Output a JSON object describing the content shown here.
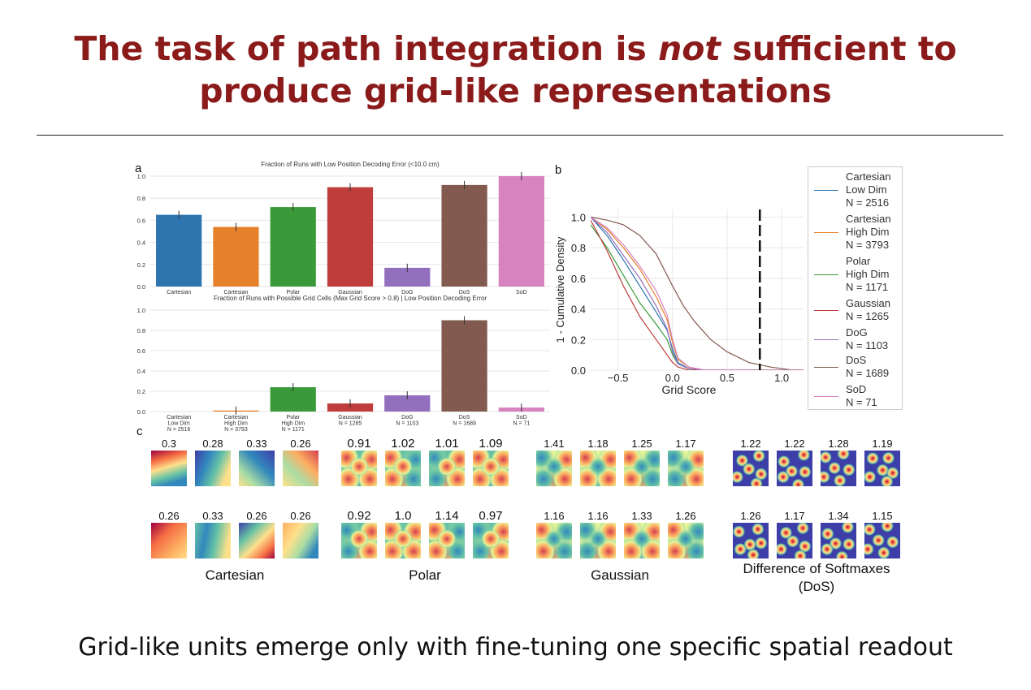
{
  "title": {
    "line1_pre": "The task of path integration is ",
    "line1_em": "not",
    "line1_post": " sufficient to",
    "line2": "produce grid-like representations"
  },
  "footer": "Grid-like units emerge only with fine-tuning one specific spatial readout",
  "panel_labels": {
    "a": "a",
    "b": "b",
    "c": "c"
  },
  "colors": {
    "cartesian_low": "#2e75b0",
    "cartesian_high": "#e6802a",
    "polar": "#3a9a3a",
    "gaussian": "#c03d3d",
    "dog": "#9370bd",
    "dos": "#825a50",
    "sod": "#d783c0",
    "title": "#8b1a1a"
  },
  "chart_data": [
    {
      "type": "bar",
      "title": "Fraction of Runs with Low Position Decoding Error (<10.0 cm)",
      "categories": [
        "Cartesian",
        "Cartesian",
        "Polar",
        "Gaussian",
        "DoG",
        "DoS",
        "SoD"
      ],
      "values": [
        0.65,
        0.54,
        0.72,
        0.9,
        0.17,
        0.92,
        1.0
      ],
      "ylim": [
        0,
        1.0
      ],
      "yticks": [
        "0.0",
        "0.2",
        "0.4",
        "0.6",
        "0.8",
        "1.0"
      ],
      "grid": true
    },
    {
      "type": "bar",
      "title": "Fraction of Runs with Possible Grid Cells (Max Grid Score > 0.8) | Low Position Decoding Error",
      "categories": [
        [
          "Cartesian",
          "Low Dim",
          "N = 2516"
        ],
        [
          "Cartesian",
          "High Dim",
          "N = 3793"
        ],
        [
          "Polar",
          "High Dim",
          "N = 1171"
        ],
        [
          "Gaussian",
          "N = 1265"
        ],
        [
          "DoG",
          "N = 1103"
        ],
        [
          "DoS",
          "N = 1689"
        ],
        [
          "SoD",
          "N = 71"
        ]
      ],
      "values": [
        0.0,
        0.01,
        0.24,
        0.08,
        0.16,
        0.9,
        0.04
      ],
      "ylim": [
        0,
        1.0
      ],
      "yticks": [
        "0.0",
        "0.2",
        "0.4",
        "0.6",
        "0.8",
        "1.0"
      ],
      "grid": true
    },
    {
      "type": "line",
      "xlabel": "Grid Score",
      "ylabel": "1 - Cumulative Density",
      "xlim": [
        -0.75,
        1.2
      ],
      "ylim": [
        0,
        1.05
      ],
      "xticks": [
        "−0.5",
        "0.0",
        "0.5",
        "1.0"
      ],
      "yticks": [
        "0.0",
        "0.2",
        "0.4",
        "0.6",
        "0.8",
        "1.0"
      ],
      "threshold_x": 0.8,
      "legend_position": "right",
      "series": [
        {
          "name": [
            "Cartesian",
            "Low Dim",
            "N = 2516"
          ],
          "x": [
            -0.75,
            -0.6,
            -0.45,
            -0.3,
            -0.15,
            -0.05,
            0.0,
            0.05,
            0.15,
            0.3,
            0.6,
            1.2
          ],
          "y": [
            1.0,
            0.88,
            0.72,
            0.55,
            0.38,
            0.26,
            0.14,
            0.05,
            0.01,
            0.0,
            0.0,
            0.0
          ]
        },
        {
          "name": [
            "Cartesian",
            "High Dim",
            "N = 3793"
          ],
          "x": [
            -0.75,
            -0.6,
            -0.45,
            -0.3,
            -0.15,
            -0.05,
            0.0,
            0.05,
            0.15,
            0.3,
            0.6,
            1.2
          ],
          "y": [
            1.0,
            0.92,
            0.8,
            0.66,
            0.48,
            0.33,
            0.18,
            0.07,
            0.02,
            0.0,
            0.0,
            0.0
          ]
        },
        {
          "name": [
            "Polar",
            "High Dim",
            "N = 1171"
          ],
          "x": [
            -0.75,
            -0.6,
            -0.45,
            -0.3,
            -0.15,
            -0.05,
            0.0,
            0.05,
            0.15,
            0.3,
            0.6,
            1.2
          ],
          "y": [
            0.95,
            0.8,
            0.62,
            0.44,
            0.3,
            0.2,
            0.1,
            0.04,
            0.01,
            0.0,
            0.0,
            0.0
          ]
        },
        {
          "name": [
            "Gaussian",
            "N = 1265"
          ],
          "x": [
            -0.75,
            -0.6,
            -0.45,
            -0.3,
            -0.15,
            -0.05,
            0.0,
            0.05,
            0.15,
            0.3,
            0.6,
            1.2
          ],
          "y": [
            0.98,
            0.78,
            0.55,
            0.35,
            0.2,
            0.1,
            0.05,
            0.02,
            0.0,
            0.0,
            0.0,
            0.0
          ]
        },
        {
          "name": [
            "DoG",
            "N = 1103"
          ],
          "x": [
            -0.75,
            -0.6,
            -0.45,
            -0.3,
            -0.15,
            -0.05,
            0.0,
            0.05,
            0.15,
            0.3,
            0.6,
            1.2
          ],
          "y": [
            1.0,
            0.9,
            0.75,
            0.6,
            0.42,
            0.27,
            0.12,
            0.04,
            0.01,
            0.0,
            0.0,
            0.0
          ]
        },
        {
          "name": [
            "DoS",
            "N = 1689"
          ],
          "x": [
            -0.75,
            -0.6,
            -0.45,
            -0.3,
            -0.15,
            0.0,
            0.1,
            0.2,
            0.35,
            0.5,
            0.7,
            0.9,
            1.1,
            1.2
          ],
          "y": [
            1.0,
            0.98,
            0.95,
            0.88,
            0.76,
            0.55,
            0.42,
            0.32,
            0.2,
            0.12,
            0.05,
            0.02,
            0.0,
            0.0
          ]
        },
        {
          "name": [
            "SoD",
            "N = 71"
          ],
          "x": [
            -0.75,
            -0.6,
            -0.45,
            -0.3,
            -0.15,
            -0.05,
            0.0,
            0.05,
            0.15,
            0.3,
            0.6,
            1.2
          ],
          "y": [
            1.0,
            0.93,
            0.82,
            0.68,
            0.52,
            0.36,
            0.2,
            0.08,
            0.02,
            0.0,
            0.0,
            0.0
          ]
        }
      ]
    }
  ],
  "ratemaps": {
    "groups": [
      {
        "label": "Cartesian",
        "scores": [
          [
            "0.3",
            "0.28",
            "0.33",
            "0.26"
          ],
          [
            "0.26",
            "0.33",
            "0.26",
            "0.26"
          ]
        ]
      },
      {
        "label": "Polar",
        "scores": [
          [
            "0.91",
            "1.02",
            "1.01",
            "1.09"
          ],
          [
            "0.92",
            "1.0",
            "1.14",
            "0.97"
          ]
        ]
      },
      {
        "label": "Gaussian",
        "scores": [
          [
            "1.41",
            "1.18",
            "1.25",
            "1.17"
          ],
          [
            "1.16",
            "1.16",
            "1.33",
            "1.26"
          ]
        ]
      },
      {
        "label": [
          "Difference of Softmaxes",
          "(DoS)"
        ],
        "scores": [
          [
            "1.22",
            "1.22",
            "1.28",
            "1.19"
          ],
          [
            "1.26",
            "1.17",
            "1.34",
            "1.15"
          ]
        ]
      }
    ]
  }
}
